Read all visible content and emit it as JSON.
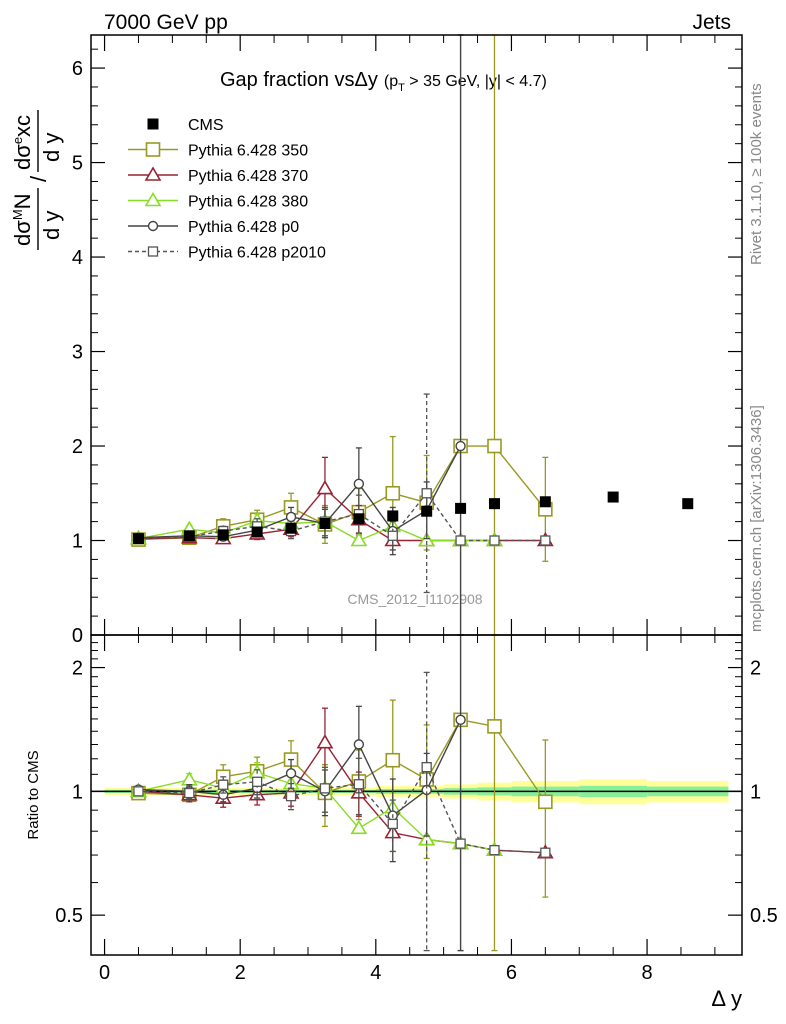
{
  "header": {
    "left": "7000 GeV pp",
    "right": "Jets"
  },
  "side_labels": {
    "rivet": "Rivet 3.1.10, ≥ 100k events",
    "mcplots": "mcplots.cern.ch [arXiv:1306.3436]"
  },
  "analysis_id": "CMS_2012_I1102908",
  "title": {
    "main": "Gap fraction vsΔy",
    "cut_prefix": "(p",
    "cut_sub": "T",
    "cut_suffix": " > 35 GeV, |y| < 4.7)"
  },
  "axes": {
    "ylabel_main_num": "dσ",
    "ylabel_main_sup1": "M",
    "ylabel_main_N": "N",
    "ylabel_main_den": "d y",
    "ylabel_main_slash": "/",
    "ylabel_main_num2": "dσ",
    "ylabel_main_sup2": "e",
    "ylabel_main_xc": "xc",
    "ylabel_ratio": "Ratio to CMS",
    "xlabel": "Δ y"
  },
  "legend": [
    {
      "label": "CMS",
      "color": "#000000",
      "marker": "filled-square",
      "dash": false
    },
    {
      "label": "Pythia 6.428 350",
      "color": "#999922",
      "marker": "open-square",
      "dash": false
    },
    {
      "label": "Pythia 6.428 370",
      "color": "#992233",
      "marker": "open-triangle",
      "dash": false
    },
    {
      "label": "Pythia 6.428 380",
      "color": "#88dd22",
      "marker": "open-triangle",
      "dash": false
    },
    {
      "label": "Pythia 6.428 p0",
      "color": "#444444",
      "marker": "open-circle",
      "dash": false
    },
    {
      "label": "Pythia 6.428 p2010",
      "color": "#555555",
      "marker": "open-square-small",
      "dash": true
    }
  ],
  "chart_data": {
    "type": "line",
    "xlim": [
      -0.2,
      9.4
    ],
    "ylim_main": [
      0,
      6.35
    ],
    "ylim_ratio_log": [
      0.4,
      2.4
    ],
    "xticks": [
      0,
      2,
      4,
      6,
      8
    ],
    "yticks_main": [
      0,
      1,
      2,
      3,
      4,
      5,
      6
    ],
    "yticks_ratio": [
      0.5,
      1,
      2
    ],
    "cms": {
      "x": [
        0.5,
        1.25,
        1.75,
        2.25,
        2.75,
        3.25,
        3.75,
        4.25,
        4.75,
        5.25,
        5.75,
        6.5,
        7.5,
        8.6
      ],
      "y": [
        1.02,
        1.05,
        1.06,
        1.09,
        1.13,
        1.18,
        1.23,
        1.26,
        1.31,
        1.34,
        1.39,
        1.41,
        1.46,
        1.39
      ],
      "band_xmin": [
        0.0,
        1.0,
        1.5,
        2.0,
        2.5,
        3.0,
        3.5,
        4.0,
        4.5,
        5.0,
        5.5,
        6.0,
        7.0,
        8.0
      ],
      "band_xmax": [
        1.0,
        1.5,
        2.0,
        2.5,
        3.0,
        3.5,
        4.0,
        4.5,
        5.0,
        5.5,
        6.0,
        7.0,
        8.0,
        9.2
      ],
      "band_rel": [
        0.02,
        0.02,
        0.02,
        0.02,
        0.02,
        0.02,
        0.02,
        0.03,
        0.03,
        0.04,
        0.05,
        0.06,
        0.07,
        0.06
      ]
    },
    "series": [
      {
        "name": "Pythia 6.428 350",
        "x": [
          0.5,
          1.25,
          1.75,
          2.25,
          2.75,
          3.25,
          3.75,
          4.25,
          4.75,
          5.25,
          5.75,
          6.5
        ],
        "y": [
          1.01,
          1.03,
          1.15,
          1.22,
          1.35,
          1.17,
          1.3,
          1.5,
          1.4,
          2.0,
          2.0,
          1.33
        ],
        "yerr": [
          0.02,
          0.04,
          0.08,
          0.1,
          0.15,
          0.2,
          0.25,
          0.6,
          0.5,
          4.6,
          4.7,
          0.55
        ]
      },
      {
        "name": "Pythia 6.428 370",
        "x": [
          0.5,
          1.25,
          1.75,
          2.25,
          2.75,
          3.25,
          3.75,
          4.25,
          4.75,
          5.25,
          5.75,
          6.5
        ],
        "y": [
          1.02,
          1.03,
          1.02,
          1.07,
          1.12,
          1.55,
          1.22,
          1.0,
          1.0,
          1.0,
          1.0,
          1.0
        ],
        "yerr": [
          0.02,
          0.04,
          0.05,
          0.06,
          0.08,
          0.33,
          0.15,
          0.0,
          0.0,
          0.0,
          0.0,
          0.0
        ]
      },
      {
        "name": "Pythia 6.428 380",
        "x": [
          0.5,
          1.25,
          1.75,
          2.25,
          2.75,
          3.25,
          3.75,
          4.25,
          4.75,
          5.25,
          5.75
        ],
        "y": [
          1.02,
          1.12,
          1.08,
          1.21,
          1.18,
          1.2,
          1.0,
          1.15,
          1.0,
          1.0,
          1.0
        ],
        "yerr": [
          0.02,
          0.04,
          0.05,
          0.07,
          0.08,
          0.15,
          0.0,
          0.1,
          0.0,
          0.0,
          0.0
        ]
      },
      {
        "name": "Pythia 6.428 p0",
        "x": [
          0.5,
          1.25,
          1.75,
          2.25,
          2.75,
          3.25,
          3.75,
          4.25,
          4.75,
          5.25
        ],
        "y": [
          1.03,
          1.05,
          1.04,
          1.11,
          1.25,
          1.18,
          1.6,
          1.1,
          1.32,
          2.0
        ],
        "yerr": [
          0.02,
          0.04,
          0.04,
          0.06,
          0.1,
          0.15,
          0.38,
          0.25,
          0.3,
          4.6
        ]
      },
      {
        "name": "Pythia 6.428 p2010",
        "x": [
          0.5,
          1.25,
          1.75,
          2.25,
          2.75,
          3.25,
          3.75,
          4.25,
          4.75,
          5.25,
          5.75,
          6.5
        ],
        "y": [
          1.02,
          1.04,
          1.1,
          1.15,
          1.1,
          1.2,
          1.28,
          1.05,
          1.5,
          1.0,
          1.0,
          1.0
        ],
        "yerr": [
          0.02,
          0.04,
          0.05,
          0.08,
          0.08,
          0.15,
          0.2,
          0.15,
          1.05,
          0.0,
          0.0,
          0.0
        ]
      }
    ]
  }
}
